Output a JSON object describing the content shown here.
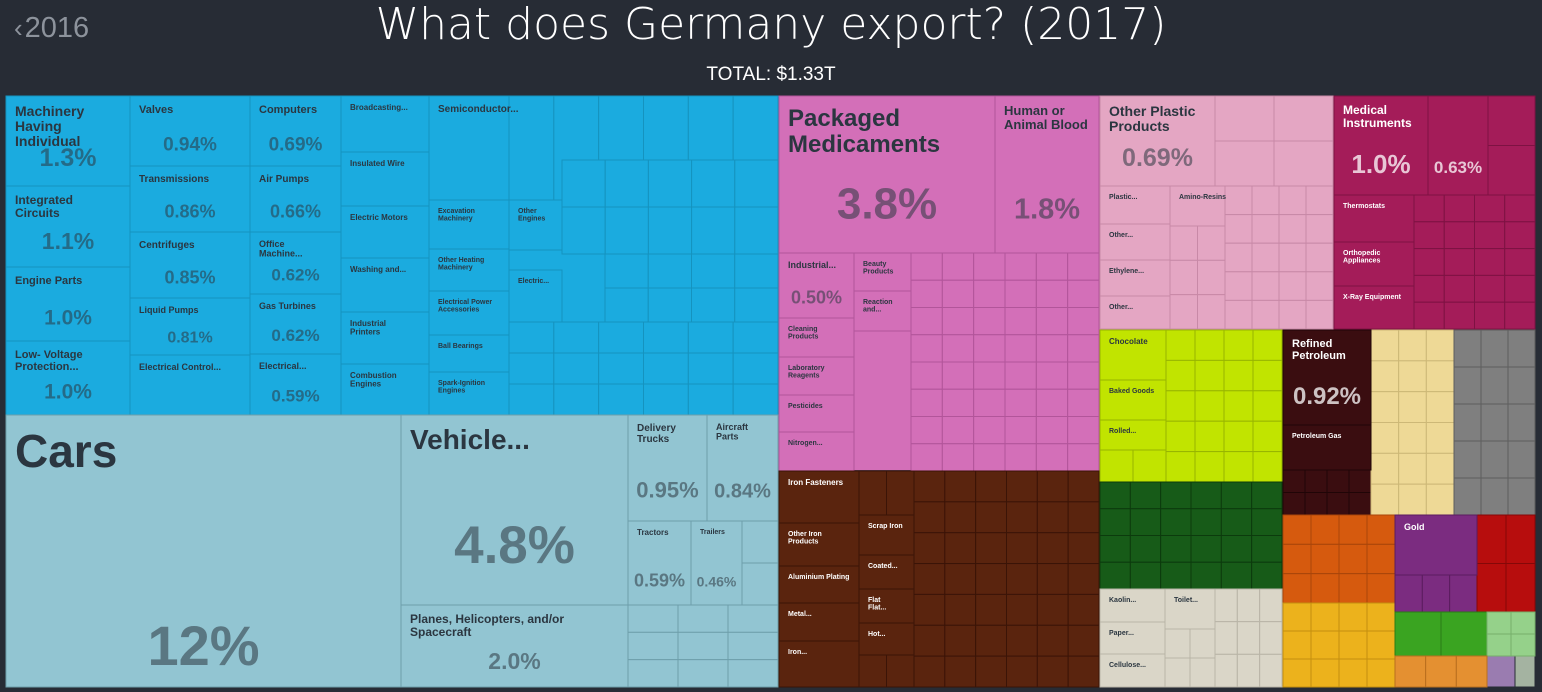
{
  "nav": {
    "back_year": "2016"
  },
  "header": {
    "title": "What does Germany export? (2017)",
    "total": "TOTAL: $1.33T"
  },
  "chart_data": {
    "type": "treemap",
    "title": "What does Germany export? (2017)",
    "total": "$1.33T",
    "colors": {
      "machines": "#1babdf",
      "machines_dark": "#1593bf",
      "transport": "#92c5d2",
      "transport_dark": "#6e9fab",
      "chemicals": "#d36fb8",
      "chemicals_dark": "#b2559a",
      "plastics": "#e4a6c3",
      "plastics_dark": "#c889a7",
      "instruments": "#a41c59",
      "instruments_dark": "#7e1243",
      "metals": "#5a240e",
      "metals_dark": "#3b1407",
      "foodstuffs": "#c1e400",
      "foodstuffs_dark": "#98b500",
      "mineral": "#3a0d10",
      "mineral_dark": "#200507",
      "textiles": "#175b18",
      "textiles_dark": "#0c3b0d",
      "stone": "#dad6c8",
      "stone_dark": "#b9b5a7",
      "misc": "#eed996",
      "misc_dark": "#cdb877",
      "other": "#7f7f7f",
      "other_dark": "#5e5e5e",
      "wood": "#d65a0e",
      "wood_dark": "#a9450a",
      "precious": "#7b2c80",
      "precious_dark": "#5b1c5f",
      "weapons": "#b70d0d",
      "weapons_dark": "#850808",
      "vegetable": "#3aa421",
      "vegetable_dark": "#2a7d16",
      "yellow": "#ecb21c",
      "yellow_dark": "#c48f0f",
      "lightgreen": "#95d18a",
      "lightgreen_dark": "#76b06b",
      "orange2": "#e49031",
      "orange2_dark": "#b96f1e",
      "lavender": "#9a7cb0",
      "sage": "#a4b3a1",
      "label": "#2b3640",
      "label_light": "#ffffff"
    },
    "items": [
      {
        "name": "Machinery Having Individual Functions",
        "share": "1.3%",
        "category": "machines"
      },
      {
        "name": "Integrated Circuits",
        "share": "1.1%",
        "category": "machines"
      },
      {
        "name": "Engine Parts",
        "share": "1.0%",
        "category": "machines"
      },
      {
        "name": "Low- Voltage Protection...",
        "share": "1.0%",
        "category": "machines"
      },
      {
        "name": "Valves",
        "share": "0.94%",
        "category": "machines"
      },
      {
        "name": "Transmissions",
        "share": "0.86%",
        "category": "machines"
      },
      {
        "name": "Centrifuges",
        "share": "0.85%",
        "category": "machines"
      },
      {
        "name": "Liquid Pumps",
        "share": "0.81%",
        "category": "machines"
      },
      {
        "name": "Electrical Control...",
        "share": "",
        "category": "machines"
      },
      {
        "name": "Computers",
        "share": "0.69%",
        "category": "machines"
      },
      {
        "name": "Air Pumps",
        "share": "0.66%",
        "category": "machines"
      },
      {
        "name": "Office Machine...",
        "share": "0.62%",
        "category": "machines"
      },
      {
        "name": "Gas Turbines",
        "share": "0.62%",
        "category": "machines"
      },
      {
        "name": "Electrical...",
        "share": "0.59%",
        "category": "machines"
      },
      {
        "name": "Broadcasting...",
        "share": "",
        "category": "machines"
      },
      {
        "name": "Insulated Wire",
        "share": "",
        "category": "machines"
      },
      {
        "name": "Electric Motors",
        "share": "",
        "category": "machines"
      },
      {
        "name": "Washing and...",
        "share": "",
        "category": "machines"
      },
      {
        "name": "Industrial Printers",
        "share": "",
        "category": "machines"
      },
      {
        "name": "Combustion Engines",
        "share": "",
        "category": "machines"
      },
      {
        "name": "Semiconductor...",
        "share": "",
        "category": "machines"
      },
      {
        "name": "Excavation Machinery",
        "share": "",
        "category": "machines"
      },
      {
        "name": "Other Heating Machinery",
        "share": "",
        "category": "machines"
      },
      {
        "name": "Electrical Power Accessories",
        "share": "",
        "category": "machines"
      },
      {
        "name": "Ball Bearings",
        "share": "",
        "category": "machines"
      },
      {
        "name": "Spark-Ignition Engines",
        "share": "",
        "category": "machines"
      },
      {
        "name": "Other Engines",
        "share": "",
        "category": "machines"
      },
      {
        "name": "Electric...",
        "share": "",
        "category": "machines"
      },
      {
        "name": "Cars",
        "share": "12%",
        "category": "transport"
      },
      {
        "name": "Vehicle...",
        "share": "4.8%",
        "category": "transport"
      },
      {
        "name": "Planes, Helicopters, and/or Spacecraft",
        "share": "2.0%",
        "category": "transport"
      },
      {
        "name": "Delivery Trucks",
        "share": "0.95%",
        "category": "transport"
      },
      {
        "name": "Aircraft Parts",
        "share": "0.84%",
        "category": "transport"
      },
      {
        "name": "Tractors",
        "share": "0.59%",
        "category": "transport"
      },
      {
        "name": "Trailers",
        "share": "0.46%",
        "category": "transport"
      },
      {
        "name": "Packaged Medicaments",
        "share": "3.8%",
        "category": "chemicals"
      },
      {
        "name": "Human or Animal Blood",
        "share": "1.8%",
        "category": "chemicals"
      },
      {
        "name": "Industrial...",
        "share": "0.50%",
        "category": "chemicals"
      },
      {
        "name": "Beauty Products",
        "share": "",
        "category": "chemicals"
      },
      {
        "name": "Reaction and...",
        "share": "",
        "category": "chemicals"
      },
      {
        "name": "Cleaning Products",
        "share": "",
        "category": "chemicals"
      },
      {
        "name": "Laboratory Reagents",
        "share": "",
        "category": "chemicals"
      },
      {
        "name": "Pesticides",
        "share": "",
        "category": "chemicals"
      },
      {
        "name": "Nitrogen...",
        "share": "",
        "category": "chemicals"
      },
      {
        "name": "Other Plastic Products",
        "share": "0.69%",
        "category": "plastics"
      },
      {
        "name": "Plastic...",
        "share": "",
        "category": "plastics"
      },
      {
        "name": "Amino-Resins",
        "share": "",
        "category": "plastics"
      },
      {
        "name": "Other...",
        "share": "",
        "category": "plastics"
      },
      {
        "name": "Ethylene...",
        "share": "",
        "category": "plastics"
      },
      {
        "name": "Other...",
        "share": "",
        "category": "plastics"
      },
      {
        "name": "Medical Instruments",
        "share": "1.0%",
        "category": "instruments"
      },
      {
        "name": "",
        "share": "0.63%",
        "category": "instruments"
      },
      {
        "name": "Thermostats",
        "share": "",
        "category": "instruments"
      },
      {
        "name": "Orthopedic Appliances",
        "share": "",
        "category": "instruments"
      },
      {
        "name": "X-Ray Equipment",
        "share": "",
        "category": "instruments"
      },
      {
        "name": "Iron Fasteners",
        "share": "",
        "category": "metals"
      },
      {
        "name": "Other Iron Products",
        "share": "",
        "category": "metals"
      },
      {
        "name": "Aluminium Plating",
        "share": "",
        "category": "metals"
      },
      {
        "name": "Metal...",
        "share": "",
        "category": "metals"
      },
      {
        "name": "Iron...",
        "share": "",
        "category": "metals"
      },
      {
        "name": "Scrap Iron",
        "share": "",
        "category": "metals"
      },
      {
        "name": "Coated...",
        "share": "",
        "category": "metals"
      },
      {
        "name": "Flat Flat...",
        "share": "",
        "category": "metals"
      },
      {
        "name": "Hot...",
        "share": "",
        "category": "metals"
      },
      {
        "name": "Chocolate",
        "share": "",
        "category": "foodstuffs"
      },
      {
        "name": "Baked Goods",
        "share": "",
        "category": "foodstuffs"
      },
      {
        "name": "Rolled...",
        "share": "",
        "category": "foodstuffs"
      },
      {
        "name": "Refined Petroleum",
        "share": "0.92%",
        "category": "mineral"
      },
      {
        "name": "Petroleum Gas",
        "share": "",
        "category": "mineral"
      },
      {
        "name": "Kaolin...",
        "share": "",
        "category": "stone"
      },
      {
        "name": "Paper...",
        "share": "",
        "category": "stone"
      },
      {
        "name": "Cellulose...",
        "share": "",
        "category": "stone"
      },
      {
        "name": "Toilet...",
        "share": "",
        "category": "stone"
      },
      {
        "name": "Gold",
        "share": "",
        "category": "precious"
      }
    ]
  }
}
